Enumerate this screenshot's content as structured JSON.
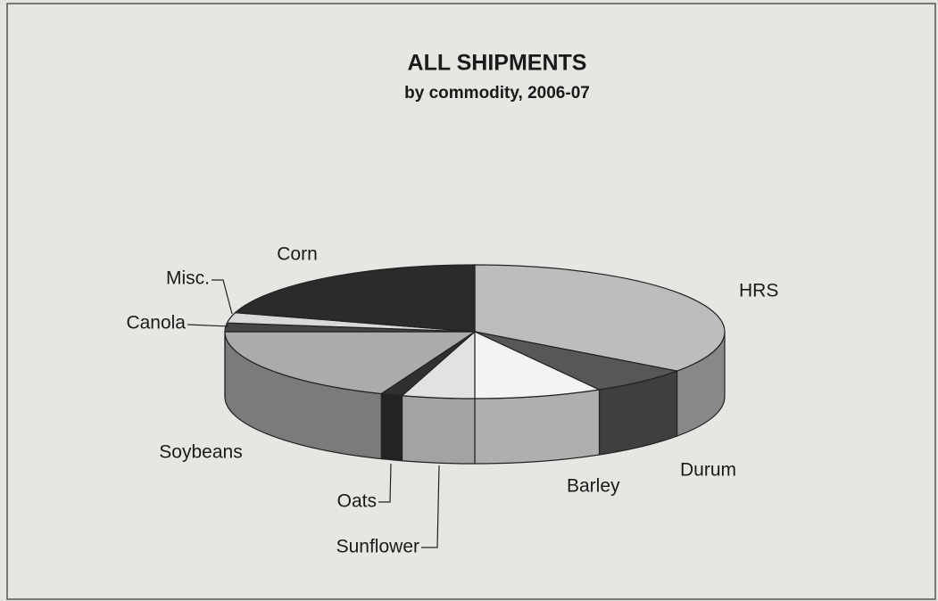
{
  "chart_data": {
    "type": "pie3d",
    "title": "ALL SHIPMENTS",
    "subtitle": "by commodity, 2006-07",
    "categories": [
      "HRS",
      "Durum",
      "Barley",
      "Sunflower",
      "Oats",
      "Soybeans",
      "Canola",
      "Misc.",
      "Corn"
    ],
    "values": [
      35,
      6.7,
      8.3,
      4.7,
      1.4,
      18.9,
      2.1,
      2.5,
      20.4
    ],
    "colors": [
      "#bdbdbd",
      "#575757",
      "#f3f3f3",
      "#e2e2e2",
      "#303030",
      "#ababab",
      "#454545",
      "#d9d9d9",
      "#2b2b2b"
    ]
  }
}
